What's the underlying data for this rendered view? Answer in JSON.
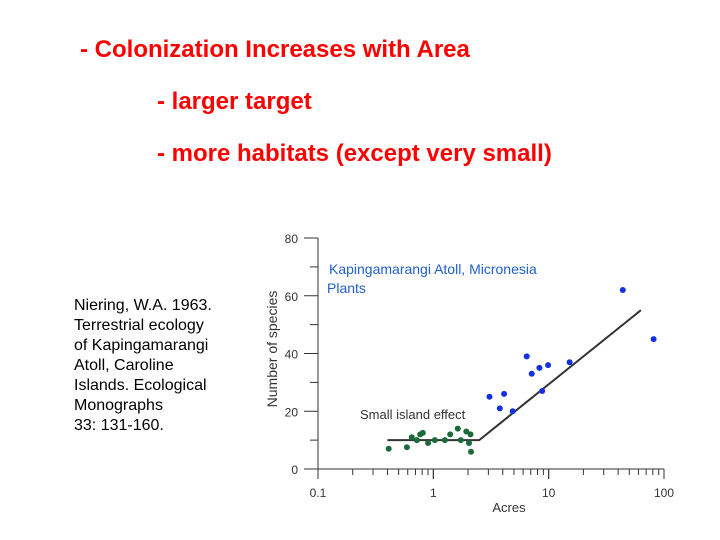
{
  "slide": {
    "bullets": [
      "- Colonization Increases with Area",
      "- larger target",
      "- more habitats (except very small)"
    ],
    "citation": [
      "Niering, W.A. 1963.",
      "Terrestrial ecology",
      "of Kapingamarangi",
      "Atoll, Caroline",
      "Islands. Ecological",
      "Monographs",
      "33: 131-160."
    ]
  },
  "colors": {
    "bullet_text": "#ff0000",
    "title_text": "#2060c8",
    "small_island_points": "#1a6a3a",
    "large_island_points": "#1530e0",
    "fit_line": "#333333",
    "axis": "#333333"
  },
  "chart_data": {
    "type": "scatter",
    "title": "Kapingamarangi Atoll, Micronesia",
    "subtitle": "Plants",
    "xlabel": "Acres",
    "ylabel": "Number of species",
    "x_scale": "log",
    "xlim": [
      0.1,
      100
    ],
    "ylim": [
      0,
      80
    ],
    "x_ticks": [
      0.1,
      1,
      10,
      100
    ],
    "x_tick_labels": [
      "0.1",
      "1",
      "10",
      "100"
    ],
    "y_ticks": [
      0,
      20,
      40,
      60,
      80
    ],
    "y_tick_labels": [
      "0",
      "20",
      "40",
      "60",
      "80"
    ],
    "grid": false,
    "annotations": [
      "Small island effect"
    ],
    "series": [
      {
        "group": "small-island",
        "points": [
          [
            0.41,
            7
          ],
          [
            0.59,
            7.5
          ],
          [
            0.65,
            11
          ],
          [
            0.72,
            10
          ],
          [
            0.77,
            12
          ],
          [
            0.81,
            12.5
          ],
          [
            0.9,
            9
          ],
          [
            1.03,
            10
          ],
          [
            1.26,
            10
          ],
          [
            1.4,
            12
          ],
          [
            1.63,
            14
          ],
          [
            1.73,
            10
          ],
          [
            1.93,
            13
          ],
          [
            2.04,
            9
          ],
          [
            2.1,
            12
          ],
          [
            2.12,
            6
          ]
        ]
      },
      {
        "group": "large-island",
        "points": [
          [
            3.07,
            25
          ],
          [
            3.77,
            21
          ],
          [
            4.11,
            26
          ],
          [
            4.88,
            20
          ],
          [
            6.45,
            39
          ],
          [
            7.12,
            33
          ],
          [
            8.31,
            35
          ],
          [
            8.79,
            27
          ],
          [
            9.88,
            36
          ],
          [
            15.2,
            37
          ],
          [
            43.9,
            62
          ],
          [
            81.2,
            45
          ]
        ]
      }
    ],
    "fit_line": {
      "type": "piecewise",
      "points": [
        [
          0.4,
          10
        ],
        [
          2.5,
          10
        ],
        [
          63,
          55
        ]
      ]
    }
  }
}
